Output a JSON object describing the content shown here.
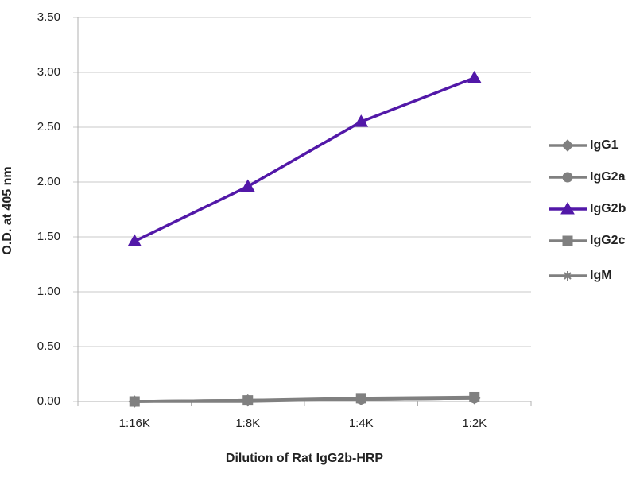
{
  "chart_data": {
    "type": "line",
    "x_label": "Dilution of Rat IgG2b-HRP",
    "y_label": "O.D. at 405 nm",
    "categories": [
      "1:16K",
      "1:8K",
      "1:4K",
      "1:2K"
    ],
    "series": [
      {
        "name": "IgG1",
        "color": "#808080",
        "marker": "diamond",
        "values": [
          0.0,
          0.01,
          0.02,
          0.03
        ]
      },
      {
        "name": "IgG2a",
        "color": "#808080",
        "marker": "circle",
        "values": [
          0.0,
          0.01,
          0.02,
          0.03
        ]
      },
      {
        "name": "IgG2b",
        "color": "#5218a8",
        "marker": "triangle",
        "values": [
          1.46,
          1.96,
          2.55,
          2.95
        ]
      },
      {
        "name": "IgG2c",
        "color": "#808080",
        "marker": "square",
        "values": [
          0.0,
          0.01,
          0.03,
          0.04
        ]
      },
      {
        "name": "IgM",
        "color": "#808080",
        "marker": "star",
        "values": [
          0.0,
          0.0,
          0.02,
          0.03
        ]
      }
    ],
    "ylim": [
      0,
      3.5
    ],
    "yticks": [
      {
        "value": 0,
        "label": "0.00"
      },
      {
        "value": 0.5,
        "label": "0.50"
      },
      {
        "value": 1,
        "label": "1.00"
      },
      {
        "value": 1.5,
        "label": "1.50"
      },
      {
        "value": 2,
        "label": "2.00"
      },
      {
        "value": 2.5,
        "label": "2.50"
      },
      {
        "value": 3,
        "label": "3.00"
      },
      {
        "value": 3.5,
        "label": "3.50"
      }
    ],
    "grid": true,
    "legend": "right"
  }
}
